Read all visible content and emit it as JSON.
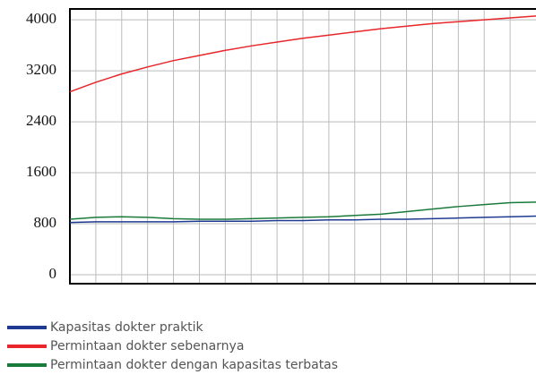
{
  "chart_data": {
    "type": "line",
    "categories": [
      null,
      null,
      null,
      null,
      null,
      null,
      null,
      null,
      null,
      null,
      null,
      null,
      null,
      null,
      null,
      null,
      null,
      null,
      null
    ],
    "series": [
      {
        "name": "Kapasitas dokter praktik",
        "color": "#1f3a93",
        "values": [
          820,
          830,
          830,
          830,
          830,
          840,
          840,
          840,
          850,
          850,
          860,
          860,
          870,
          870,
          880,
          890,
          900,
          910,
          920
        ]
      },
      {
        "name": "Permintaan dokter sebenarnya",
        "color": "#e8262b",
        "values": [
          2870,
          3020,
          3150,
          3260,
          3360,
          3440,
          3520,
          3590,
          3650,
          3710,
          3760,
          3810,
          3860,
          3900,
          3940,
          3970,
          4000,
          4030,
          4060
        ]
      },
      {
        "name": "Permintaan dokter dengan kapasitas terbatas",
        "color": "#1a7a3a",
        "values": [
          870,
          900,
          910,
          900,
          880,
          870,
          870,
          880,
          890,
          900,
          910,
          930,
          950,
          990,
          1030,
          1070,
          1100,
          1130,
          1140
        ]
      }
    ],
    "ylim": [
      -140,
      4170
    ],
    "yticks": [
      0,
      800,
      1600,
      2400,
      3200,
      4000
    ],
    "grid": true
  }
}
